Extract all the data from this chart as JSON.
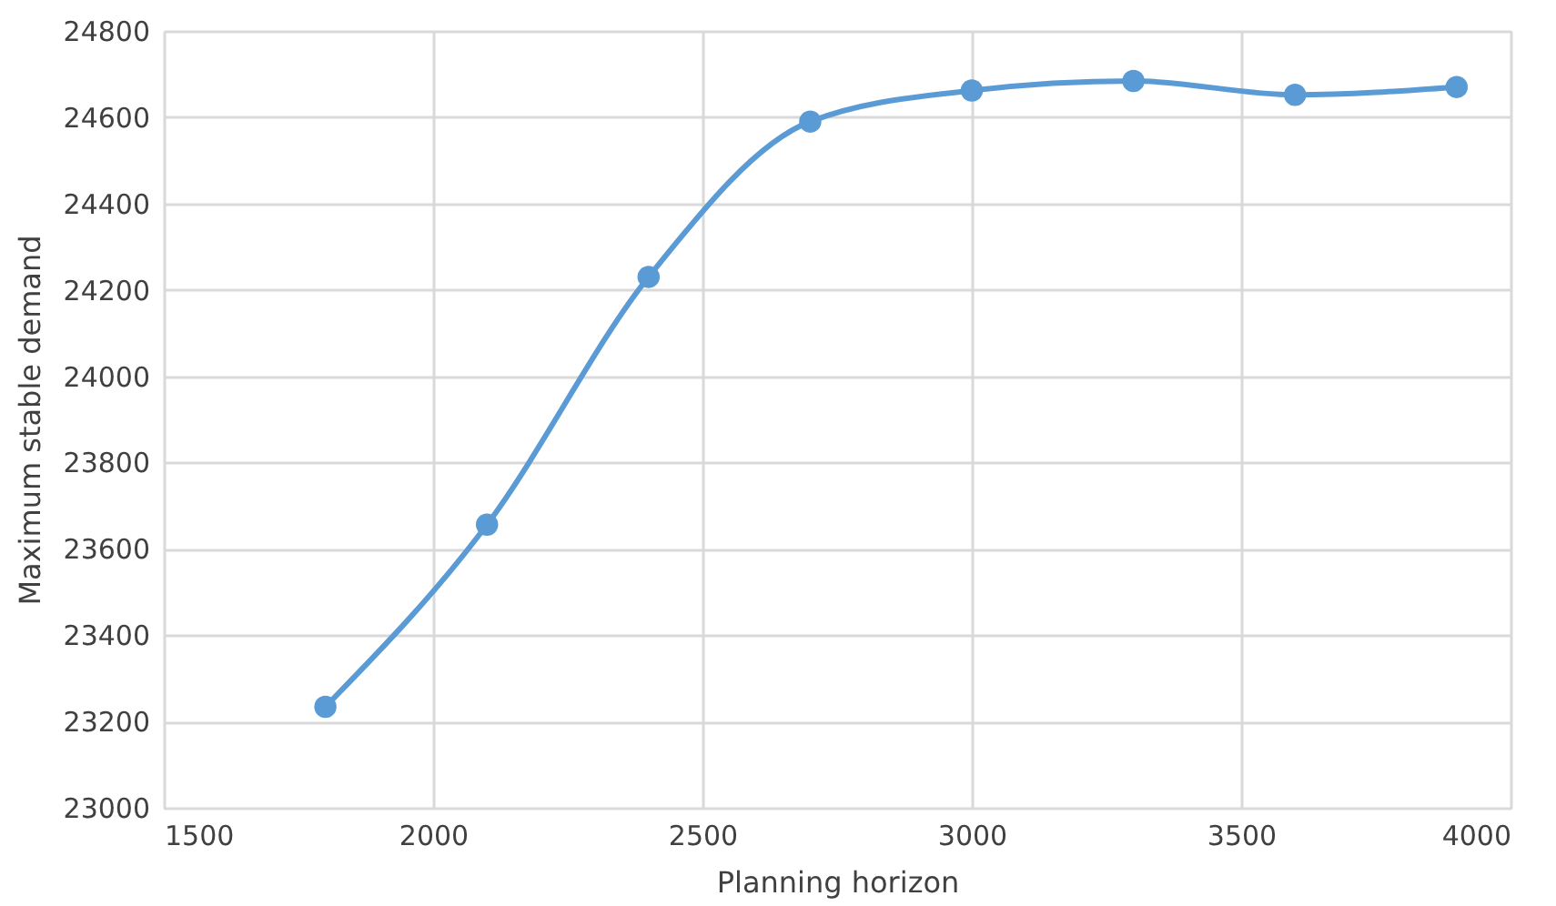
{
  "chart_data": {
    "type": "line",
    "xlabel": "Planning horizon",
    "ylabel": "Maximum stable demand",
    "x": [
      1800,
      2100,
      2400,
      2700,
      3000,
      3300,
      3600,
      3900
    ],
    "series": [
      {
        "color": "#5b9bd5",
        "values": [
          23234,
          23656,
          24230,
          24590,
          24662,
          24684,
          24652,
          24670
        ]
      }
    ],
    "xlim": [
      1500,
      4000
    ],
    "xticks": [
      1500,
      2000,
      2500,
      3000,
      3500,
      4000
    ],
    "ylim": [
      23000,
      24800
    ],
    "yticks": [
      23000,
      23200,
      23400,
      23600,
      23800,
      24000,
      24200,
      24400,
      24600,
      24800
    ],
    "grid": true,
    "marker": "circle",
    "line_style": "solid"
  }
}
